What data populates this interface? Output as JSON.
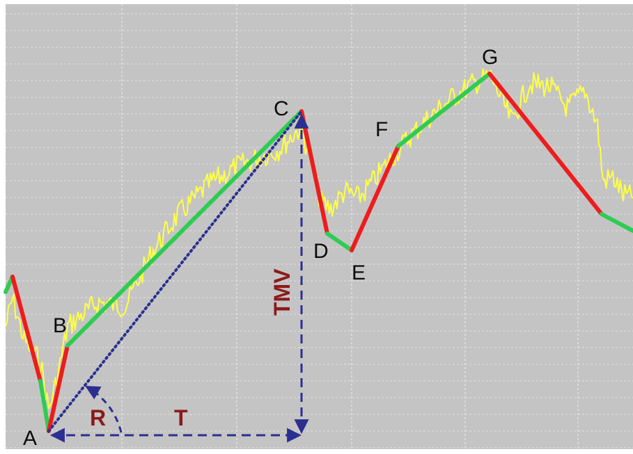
{
  "colors": {
    "background": "#c4c4c4",
    "grid": "#e2e2e2",
    "price_line": "#ffff44",
    "up_leg": "#2ecc52",
    "down_leg": "#ee1c1c",
    "measure": "#2b2f8f",
    "measure_label": "#8b1a1a",
    "point_label": "#0b0b0b"
  },
  "point_labels": {
    "A": "A",
    "B": "B",
    "C": "C",
    "D": "D",
    "E": "E",
    "F": "F",
    "G": "G"
  },
  "measure_labels": {
    "tmv": "TMV",
    "t": "T",
    "r": "R"
  }
}
